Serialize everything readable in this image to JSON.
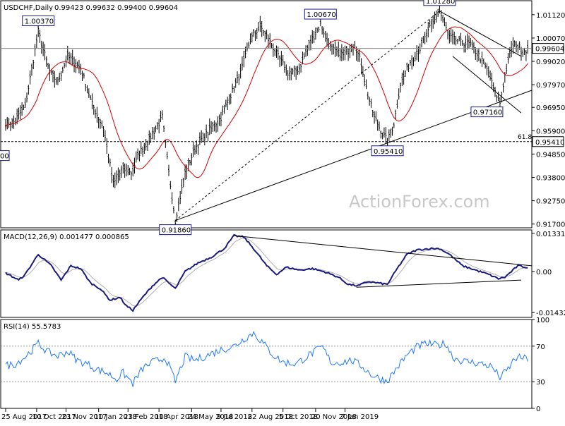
{
  "header": {
    "symbol": "USDCHF,Daily",
    "ohlc": "0.99423 0.99632 0.99400 0.99604"
  },
  "watermark": "ActionForex.com",
  "chart_data": {
    "type": "candlestick",
    "price_panel": {
      "ylim": [
        0.9153,
        1.0175
      ],
      "ticks": [
        "1.01120",
        "1.00070",
        "0.99020",
        "0.97970",
        "0.96950",
        "0.95900",
        "0.94850",
        "0.93800",
        "0.92750",
        "0.91700"
      ],
      "tick_values": [
        1.0112,
        1.0007,
        0.9902,
        0.9797,
        0.9695,
        0.959,
        0.9485,
        0.938,
        0.9275,
        0.917
      ],
      "current_label": "0.99604",
      "current_value": 0.99604,
      "level_label": "0.95410",
      "level_value": 0.9541,
      "level_annotation": "61.8",
      "swing_labels": [
        {
          "text": "1.00370",
          "value": 1.0037,
          "bar": 20
        },
        {
          "text": "0.91860",
          "value": 0.9186,
          "bar": 104
        },
        {
          "text": "1.00670",
          "value": 1.0067,
          "bar": 193
        },
        {
          "text": "0.95410",
          "value": 0.9541,
          "bar": 234
        },
        {
          "text": "1.01280",
          "value": 1.0128,
          "bar": 266
        },
        {
          "text": "0.97160",
          "value": 0.9716,
          "bar": 303
        }
      ],
      "partial_left_label": "00",
      "moving_average": "red"
    },
    "macd_panel": {
      "title": "MACD(12,26,9) 0.001477 0.000865",
      "ylim": [
        -0.016,
        0.0145
      ],
      "ticks": [
        "0.013319",
        "0.00",
        "-0.014323"
      ],
      "tick_values": [
        0.013319,
        0,
        -0.014323
      ]
    },
    "rsi_panel": {
      "title": "RSI(14) 55.5783",
      "ylim": [
        0,
        100
      ],
      "ticks": [
        "100",
        "70",
        "30",
        "0"
      ],
      "tick_values": [
        100,
        70,
        30,
        0
      ],
      "guide_levels": [
        70,
        30
      ]
    },
    "x_ticks": [
      "25 Aug 2017",
      "10 Oct 2017",
      "23 Nov 2017",
      "10 Jan 2018",
      "23 Feb 2018",
      "10 Apr 2018",
      "24 May 2018",
      "9 Jul 2018",
      "22 Aug 2018",
      "5 Oct 2018",
      "20 Nov 2018",
      "7 Jan 2019"
    ],
    "x_tick_bars": [
      0,
      19,
      37,
      57,
      75,
      94,
      114,
      132,
      151,
      170,
      190,
      208
    ],
    "price_path": [
      [
        0,
        0.962
      ],
      [
        5,
        0.963
      ],
      [
        12,
        0.97
      ],
      [
        20,
        1.0037
      ],
      [
        27,
        0.985
      ],
      [
        32,
        0.981
      ],
      [
        38,
        0.9925
      ],
      [
        46,
        0.987
      ],
      [
        53,
        0.971
      ],
      [
        60,
        0.96
      ],
      [
        66,
        0.935
      ],
      [
        72,
        0.942
      ],
      [
        77,
        0.94
      ],
      [
        82,
        0.949
      ],
      [
        88,
        0.955
      ],
      [
        96,
        0.965
      ],
      [
        100,
        0.94
      ],
      [
        104,
        0.9186
      ],
      [
        110,
        0.94
      ],
      [
        116,
        0.951
      ],
      [
        120,
        0.955
      ],
      [
        126,
        0.96
      ],
      [
        132,
        0.965
      ],
      [
        138,
        0.975
      ],
      [
        144,
        0.985
      ],
      [
        150,
        1.0
      ],
      [
        156,
        1.006
      ],
      [
        162,
        0.999
      ],
      [
        168,
        0.991
      ],
      [
        174,
        0.984
      ],
      [
        180,
        0.987
      ],
      [
        186,
        0.998
      ],
      [
        193,
        1.0067
      ],
      [
        200,
        0.995
      ],
      [
        207,
        0.993
      ],
      [
        214,
        0.998
      ],
      [
        218,
        0.989
      ],
      [
        222,
        0.975
      ],
      [
        226,
        0.965
      ],
      [
        230,
        0.959
      ],
      [
        234,
        0.9541
      ],
      [
        238,
        0.962
      ],
      [
        242,
        0.98
      ],
      [
        248,
        0.99
      ],
      [
        254,
        0.996
      ],
      [
        260,
        1.005
      ],
      [
        266,
        1.0128
      ],
      [
        272,
        1.001
      ],
      [
        278,
        0.999
      ],
      [
        284,
        0.998
      ],
      [
        290,
        0.993
      ],
      [
        296,
        0.985
      ],
      [
        300,
        0.976
      ],
      [
        303,
        0.9716
      ],
      [
        306,
        0.984
      ],
      [
        310,
        0.996
      ],
      [
        313,
        0.998
      ],
      [
        317,
        0.9946
      ],
      [
        320,
        0.996
      ]
    ],
    "macd_path": [
      [
        0,
        -0.0005
      ],
      [
        8,
        -0.003
      ],
      [
        12,
        -0.001
      ],
      [
        20,
        0.006
      ],
      [
        28,
        0.002
      ],
      [
        34,
        -0.003
      ],
      [
        40,
        0.002
      ],
      [
        46,
        0.001
      ],
      [
        52,
        -0.004
      ],
      [
        58,
        -0.006
      ],
      [
        64,
        -0.01
      ],
      [
        70,
        -0.009
      ],
      [
        74,
        -0.012
      ],
      [
        78,
        -0.0135
      ],
      [
        84,
        -0.009
      ],
      [
        90,
        -0.005
      ],
      [
        96,
        -0.002
      ],
      [
        104,
        -0.006
      ],
      [
        110,
        0.0
      ],
      [
        118,
        0.003
      ],
      [
        126,
        0.005
      ],
      [
        134,
        0.008
      ],
      [
        140,
        0.0125
      ],
      [
        146,
        0.012
      ],
      [
        152,
        0.008
      ],
      [
        160,
        0.002
      ],
      [
        166,
        -0.001
      ],
      [
        172,
        0.0015
      ],
      [
        180,
        0.0005
      ],
      [
        188,
        0.001
      ],
      [
        196,
        -0.0002
      ],
      [
        204,
        -0.002
      ],
      [
        210,
        -0.0045
      ],
      [
        216,
        -0.005
      ],
      [
        222,
        -0.0035
      ],
      [
        228,
        -0.004
      ],
      [
        234,
        -0.0045
      ],
      [
        240,
        0.001
      ],
      [
        246,
        0.006
      ],
      [
        252,
        0.0075
      ],
      [
        260,
        0.008
      ],
      [
        266,
        0.008
      ],
      [
        272,
        0.006
      ],
      [
        280,
        0.002
      ],
      [
        288,
        0.0005
      ],
      [
        296,
        -0.001
      ],
      [
        302,
        -0.0025
      ],
      [
        306,
        -0.002
      ],
      [
        310,
        0.0
      ],
      [
        314,
        0.002
      ],
      [
        320,
        0.0014
      ]
    ],
    "rsi_path": [
      [
        0,
        48
      ],
      [
        6,
        50
      ],
      [
        12,
        58
      ],
      [
        20,
        73
      ],
      [
        26,
        63
      ],
      [
        32,
        59
      ],
      [
        38,
        64
      ],
      [
        44,
        54
      ],
      [
        50,
        50
      ],
      [
        56,
        44
      ],
      [
        62,
        40
      ],
      [
        68,
        33
      ],
      [
        72,
        40
      ],
      [
        78,
        28
      ],
      [
        84,
        45
      ],
      [
        90,
        52
      ],
      [
        98,
        57
      ],
      [
        104,
        30
      ],
      [
        110,
        58
      ],
      [
        116,
        54
      ],
      [
        124,
        60
      ],
      [
        132,
        66
      ],
      [
        140,
        70
      ],
      [
        146,
        78
      ],
      [
        152,
        85
      ],
      [
        158,
        73
      ],
      [
        164,
        60
      ],
      [
        170,
        52
      ],
      [
        178,
        50
      ],
      [
        186,
        60
      ],
      [
        194,
        69
      ],
      [
        200,
        51
      ],
      [
        206,
        52
      ],
      [
        212,
        54
      ],
      [
        218,
        48
      ],
      [
        224,
        38
      ],
      [
        230,
        33
      ],
      [
        234,
        31
      ],
      [
        240,
        46
      ],
      [
        246,
        60
      ],
      [
        252,
        69
      ],
      [
        258,
        73
      ],
      [
        264,
        71
      ],
      [
        270,
        73
      ],
      [
        274,
        58
      ],
      [
        280,
        53
      ],
      [
        286,
        52
      ],
      [
        292,
        50
      ],
      [
        298,
        47
      ],
      [
        303,
        35
      ],
      [
        308,
        44
      ],
      [
        312,
        56
      ],
      [
        316,
        57
      ],
      [
        320,
        55.6
      ]
    ]
  }
}
